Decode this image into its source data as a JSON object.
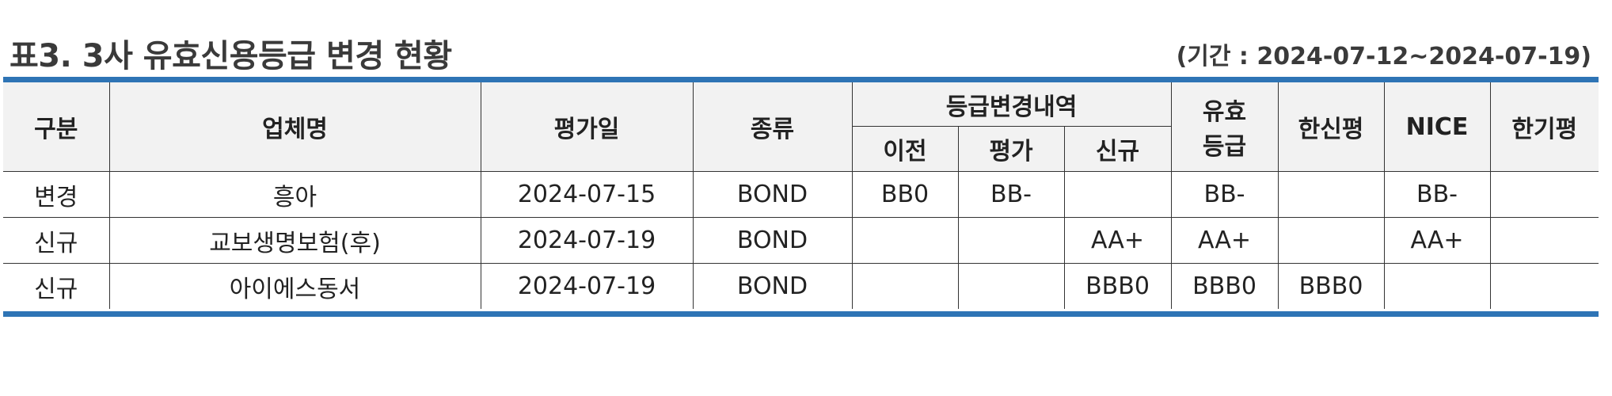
{
  "header": {
    "title": "표3. 3사 유효신용등급 변경 현황",
    "period": "(기간 : 2024-07-12~2024-07-19)"
  },
  "table": {
    "columns": {
      "category": "구분",
      "company": "업체명",
      "eval_date": "평가일",
      "type": "종류",
      "grade_change_group": "등급변경내역",
      "prev": "이전",
      "eval": "평가",
      "new": "신규",
      "effective_line1": "유효",
      "effective_line2": "등급",
      "hanshin": "한신평",
      "nice": "NICE",
      "hangi": "한기평"
    },
    "rows": [
      [
        "변경",
        "흥아",
        "2024-07-15",
        "BOND",
        "BB0",
        "BB-",
        "",
        "BB-",
        "",
        "BB-",
        ""
      ],
      [
        "신규",
        "교보생명보험(후)",
        "2024-07-19",
        "BOND",
        "",
        "",
        "AA+",
        "AA+",
        "",
        "AA+",
        ""
      ],
      [
        "신규",
        "아이에스동서",
        "2024-07-19",
        "BOND",
        "",
        "",
        "BBB0",
        "BBB0",
        "BBB0",
        "",
        ""
      ]
    ]
  }
}
